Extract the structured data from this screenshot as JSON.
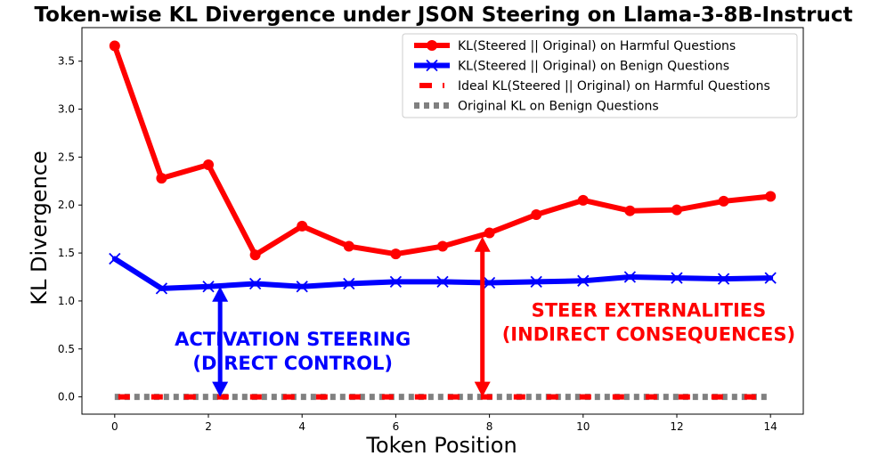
{
  "chart_data": {
    "type": "line",
    "title": "Token-wise KL Divergence under JSON Steering on Llama-3-8B-Instruct",
    "xlabel": "Token Position",
    "ylabel": "KL Divergence",
    "xlim": [
      -0.7,
      14.7
    ],
    "ylim": [
      -0.18,
      3.85
    ],
    "xticks": [
      0,
      2,
      4,
      6,
      8,
      10,
      12,
      14
    ],
    "xtick_labels": [
      "0",
      "2",
      "4",
      "6",
      "8",
      "10",
      "12",
      "14"
    ],
    "yticks": [
      0.0,
      0.5,
      1.0,
      1.5,
      2.0,
      2.5,
      3.0,
      3.5
    ],
    "ytick_labels": [
      "0.0",
      "0.5",
      "1.0",
      "1.5",
      "2.0",
      "2.5",
      "3.0",
      "3.5"
    ],
    "x": [
      0,
      1,
      2,
      3,
      4,
      5,
      6,
      7,
      8,
      9,
      10,
      11,
      12,
      13,
      14
    ],
    "series": [
      {
        "name": "KL(Steered || Original) on Harmful Questions",
        "color": "#ff0000",
        "style": "solid",
        "marker": "circle",
        "values": [
          3.66,
          2.28,
          2.42,
          1.48,
          1.78,
          1.57,
          1.49,
          1.57,
          1.71,
          1.9,
          2.05,
          1.94,
          1.95,
          2.04,
          2.09
        ]
      },
      {
        "name": "KL(Steered || Original) on Benign Questions",
        "color": "#0000ff",
        "style": "solid",
        "marker": "x",
        "values": [
          1.44,
          1.13,
          1.15,
          1.18,
          1.15,
          1.18,
          1.2,
          1.2,
          1.19,
          1.2,
          1.21,
          1.25,
          1.24,
          1.23,
          1.24
        ]
      },
      {
        "name": "Ideal KL(Steered || Original) on Harmful Questions",
        "color": "#ff0000",
        "style": "dashed",
        "marker": "none",
        "values": [
          0,
          0,
          0,
          0,
          0,
          0,
          0,
          0,
          0,
          0,
          0,
          0,
          0,
          0,
          0
        ]
      },
      {
        "name": "Original KL on Benign Questions",
        "color": "#808080",
        "style": "dotted",
        "marker": "none",
        "values": [
          0,
          0,
          0,
          0,
          0,
          0,
          0,
          0,
          0,
          0,
          0,
          0,
          0,
          0,
          0
        ]
      }
    ],
    "legend_position": "top-right",
    "annotations": [
      {
        "lines": [
          "ACTIVATION STEERING",
          "(DIRECT CONTROL)"
        ],
        "color": "#0000ff",
        "arrow_x": 2.25,
        "arrow_y": [
          0.0,
          1.15
        ],
        "text_x": 3.8,
        "text_y": [
          0.6,
          0.35
        ]
      },
      {
        "lines": [
          "STEER EXTERNALITIES",
          "(INDIRECT CONSEQUENCES)"
        ],
        "color": "#ff0000",
        "arrow_x": 7.85,
        "arrow_y": [
          0.0,
          1.67
        ],
        "text_x": 11.4,
        "text_y": [
          0.9,
          0.65
        ]
      }
    ]
  }
}
